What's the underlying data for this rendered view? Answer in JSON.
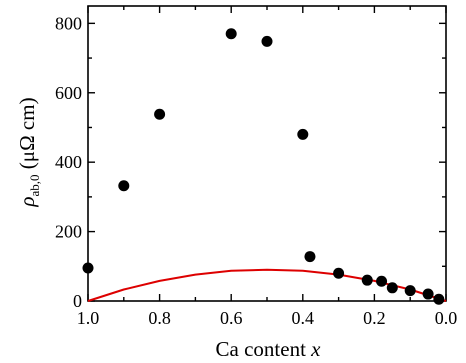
{
  "chart_data": {
    "type": "scatter",
    "xlabel": "Ca content x",
    "xlabel_main": "Ca content ",
    "xlabel_var": "x",
    "ylabel": "ρab,0 (μΩ cm)",
    "ylabel_symbol": "ρ",
    "ylabel_subscript": "ab,0",
    "ylabel_unit": " (μΩ cm)",
    "xlim": [
      1.0,
      0.0
    ],
    "ylim": [
      0,
      850
    ],
    "x_reversed": true,
    "grid": false,
    "x_ticks": [
      1.0,
      0.8,
      0.6,
      0.4,
      0.2,
      0.0
    ],
    "x_tick_labels": [
      "1.0",
      "0.8",
      "0.6",
      "0.4",
      "0.2",
      "0.0"
    ],
    "y_ticks": [
      0,
      200,
      400,
      600,
      800
    ],
    "y_tick_labels": [
      "0",
      "200",
      "400",
      "600",
      "800"
    ],
    "series": [
      {
        "kind": "scatter",
        "color": "#000000",
        "x": [
          1.0,
          0.9,
          0.8,
          0.6,
          0.5,
          0.4,
          0.38,
          0.3,
          0.22,
          0.18,
          0.15,
          0.1,
          0.05,
          0.02
        ],
        "y": [
          95,
          332,
          538,
          770,
          748,
          480,
          128,
          80,
          60,
          57,
          38,
          30,
          20,
          5
        ]
      },
      {
        "kind": "line",
        "color": "#dd0000",
        "x": [
          1.0,
          0.9,
          0.8,
          0.7,
          0.6,
          0.5,
          0.4,
          0.3,
          0.2,
          0.1,
          0.0
        ],
        "y": [
          0,
          33,
          58,
          76,
          87,
          90,
          87,
          76,
          58,
          33,
          0
        ]
      }
    ]
  }
}
